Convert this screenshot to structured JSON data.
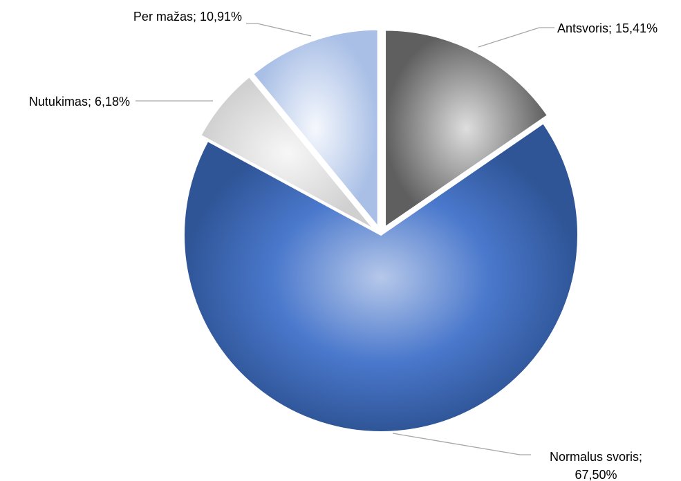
{
  "chart_data": {
    "type": "pie",
    "title": "",
    "legend": "none",
    "start_angle_deg": 0,
    "direction": "clockwise",
    "slices": [
      {
        "label": "Antsvoris",
        "value": 15.41,
        "display": "Antsvoris; 15,41%",
        "color": "#8c8c8c",
        "exploded": true
      },
      {
        "label": "Normalus svoris",
        "value": 67.5,
        "display_lines": [
          "Normalus svoris;",
          "67,50%"
        ],
        "color": "#4472c4",
        "exploded": false
      },
      {
        "label": "Nutukimas",
        "value": 6.18,
        "display": "Nutukimas; 6,18%",
        "color": "#d9d9d9",
        "exploded": true
      },
      {
        "label": "Per mažas",
        "value": 10.91,
        "display": "Per mažas; 10,91%",
        "color": "#b4c7e7",
        "exploded": true
      }
    ]
  }
}
